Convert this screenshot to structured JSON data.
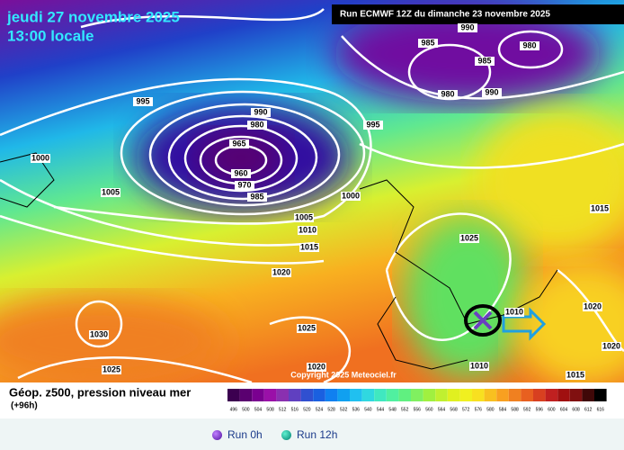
{
  "header": {
    "date": "jeudi 27 novembre 2025",
    "time": "13:00 locale",
    "run": "Run ECMWF 12Z du dimanche 23 novembre 2025"
  },
  "map": {
    "copyright": "Copyright 2025 Meteociel.fr",
    "isobar_labels": [
      "995",
      "1000",
      "1005",
      "990",
      "980",
      "965",
      "960",
      "970",
      "985",
      "995",
      "1000",
      "1005",
      "1010",
      "1015",
      "1020",
      "1025",
      "1030",
      "1025",
      "1020",
      "985",
      "990",
      "980",
      "985",
      "980",
      "990",
      "1025",
      "1015",
      "1020",
      "1010",
      "1015",
      "1020",
      "1010"
    ]
  },
  "legend": {
    "title": "Géop. z500, pression niveau mer",
    "step": "(+96h)",
    "scale": [
      "496",
      "500",
      "504",
      "508",
      "512",
      "516",
      "520",
      "524",
      "528",
      "532",
      "536",
      "540",
      "544",
      "548",
      "552",
      "556",
      "560",
      "564",
      "568",
      "572",
      "576",
      "580",
      "584",
      "588",
      "592",
      "596",
      "600",
      "604",
      "608",
      "612",
      "616"
    ],
    "colors": [
      "#3c0050",
      "#5a0070",
      "#7a0090",
      "#9a10a8",
      "#8a30b0",
      "#6040c0",
      "#3050d0",
      "#1a60e0",
      "#1080f0",
      "#10a0f0",
      "#20c0f0",
      "#30d8e0",
      "#40e8c0",
      "#50f0a0",
      "#60f080",
      "#80f060",
      "#a0f040",
      "#c0f030",
      "#e0f020",
      "#f0f020",
      "#f8e020",
      "#f8c020",
      "#f8a020",
      "#f08020",
      "#e86020",
      "#d84020",
      "#c02020",
      "#a01010",
      "#801010",
      "#400808",
      "#000000"
    ]
  },
  "footer": {
    "options": [
      "Run 0h",
      "Run 12h"
    ]
  }
}
